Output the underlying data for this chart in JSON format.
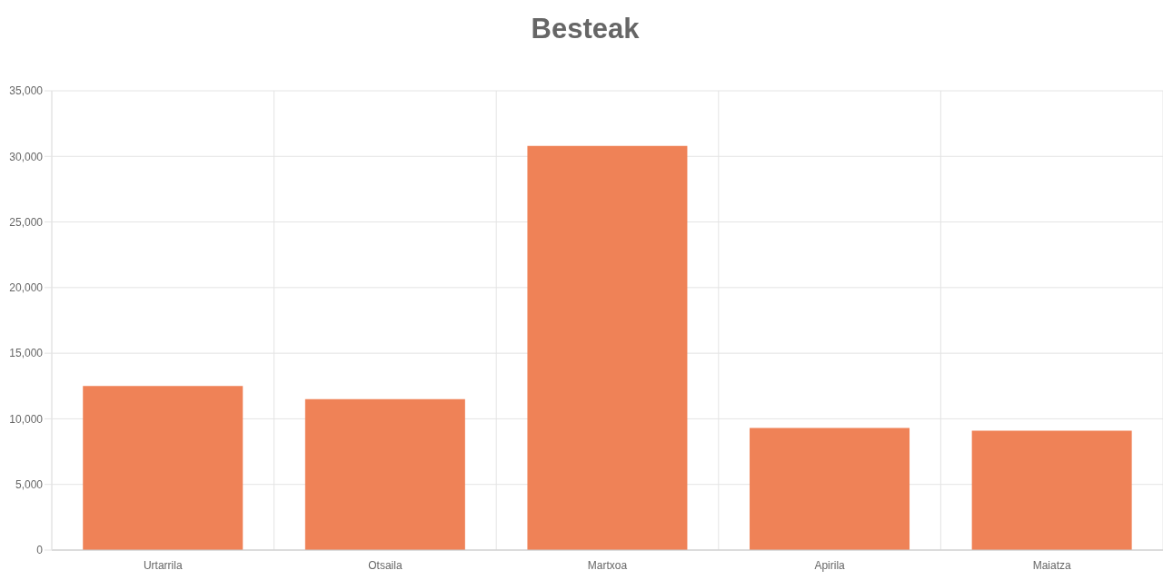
{
  "chart_data": {
    "type": "bar",
    "title": "Besteak",
    "categories": [
      "Urtarrila",
      "Otsaila",
      "Martxoa",
      "Apirila",
      "Maiatza"
    ],
    "values": [
      12500,
      11500,
      30800,
      9300,
      9100
    ],
    "color": "#ef8257",
    "ylim": [
      0,
      35000
    ],
    "yticks": [
      0,
      {
        "value": 5000,
        "label": "5,000"
      },
      {
        "value": 10000,
        "label": "10,000"
      },
      {
        "value": 15000,
        "label": "15,000"
      },
      {
        "value": 20000,
        "label": "20,000"
      },
      {
        "value": 25000,
        "label": "25,000"
      },
      {
        "value": 30000,
        "label": "30,000"
      },
      {
        "value": 35000,
        "label": "35,000"
      }
    ],
    "grid": true
  }
}
